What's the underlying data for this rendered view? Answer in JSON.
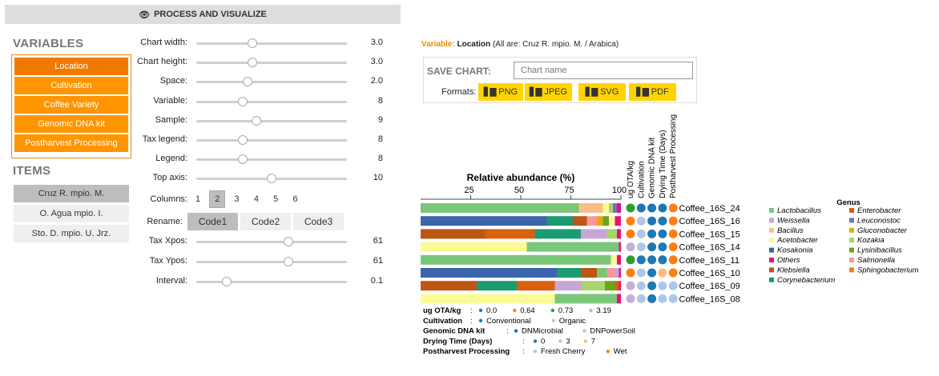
{
  "header": {
    "icon": "eye-icon",
    "title": "PROCESS AND VISUALIZE"
  },
  "variables": {
    "title": "VARIABLES",
    "items": [
      "Location",
      "Cultivation",
      "Coffee Variety",
      "Genomic DNA kit",
      "Postharvest Processing"
    ],
    "active_index": 0
  },
  "items": {
    "title": "ITEMS",
    "list": [
      "Cruz R. mpio. M.",
      "O. Agua mpio. I.",
      "Sto. D. mpio. U. Jrz."
    ],
    "active_index": 0
  },
  "sliders": [
    {
      "label": "Chart width:",
      "value": "3.0",
      "level": 0.37
    },
    {
      "label": "Chart height:",
      "value": "3.0",
      "level": 0.37
    },
    {
      "label": "Space:",
      "value": "2.0",
      "level": 0.34
    },
    {
      "label": "Variable:",
      "value": "8",
      "level": 0.31
    },
    {
      "label": "Sample:",
      "value": "9",
      "level": 0.4
    },
    {
      "label": "Tax legend:",
      "value": "8",
      "level": 0.31
    },
    {
      "label": "Legend:",
      "value": "8",
      "level": 0.31
    },
    {
      "label": "Top axis:",
      "value": "10",
      "level": 0.5
    }
  ],
  "columns": {
    "label": "Columns:",
    "options": [
      "1",
      "2",
      "3",
      "4",
      "5",
      "6"
    ],
    "active_index": 1
  },
  "rename": {
    "label": "Rename:",
    "options": [
      "Code1",
      "Code2",
      "Code3"
    ],
    "active_index": 0
  },
  "sliders2": [
    {
      "label": "Tax Xpos:",
      "value": "61",
      "level": 0.61
    },
    {
      "label": "Tax Ypos:",
      "value": "61",
      "level": 0.61
    },
    {
      "label": "Interval:",
      "value": "0.1",
      "level": 0.2
    }
  ],
  "variable_note": {
    "prefix": "Variable:",
    "name": "Location",
    "rest": "(All are: Cruz R. mpio. M. / Arabica)"
  },
  "save_chart": {
    "title": "SAVE CHART:",
    "placeholder": "Chart name",
    "formats_label": "Formats:",
    "formats": [
      "PNG",
      "JPEG",
      "SVG",
      "PDF"
    ]
  },
  "chart_data": {
    "type": "bar",
    "orientation": "horizontal-stacked",
    "title": "Relative abundance (%)",
    "xlim": [
      0,
      100
    ],
    "ticks": [
      25,
      50,
      75,
      100
    ],
    "samples": [
      "Coffee_16S_24",
      "Coffee_16S_16",
      "Coffee_16S_15",
      "Coffee_16S_14",
      "Coffee_16S_11",
      "Coffee_16S_10",
      "Coffee_16S_09",
      "Coffee_16S_08"
    ],
    "taxa": [
      {
        "name": "Lactobacillus",
        "color": "#7bc77a"
      },
      {
        "name": "Weissella",
        "color": "#c6a6d6"
      },
      {
        "name": "Bacillus",
        "color": "#f7bf86"
      },
      {
        "name": "Acetobacter",
        "color": "#fbfb96"
      },
      {
        "name": "Kosakonia",
        "color": "#3b64ad"
      },
      {
        "name": "Others",
        "color": "#eb0d81"
      },
      {
        "name": "Klebsiella",
        "color": "#bd5613"
      },
      {
        "name": "Corynebacterium",
        "color": "#1b9b72"
      },
      {
        "name": "Enterobacter",
        "color": "#d9600e"
      },
      {
        "name": "Leuconostoc",
        "color": "#7670b3"
      },
      {
        "name": "Gluconobacter",
        "color": "#e7aa05"
      },
      {
        "name": "Kozakia",
        "color": "#a7d46b"
      },
      {
        "name": "Lysinibacillus",
        "color": "#67a71c"
      },
      {
        "name": "Salmonella",
        "color": "#f99797"
      },
      {
        "name": "Sphingobacterium",
        "color": "#f77d09"
      }
    ],
    "stacks": [
      [
        [
          "Lactobacillus",
          79
        ],
        [
          "Bacillus",
          12
        ],
        [
          "Acetobacter",
          3
        ],
        [
          "Kozakia",
          2
        ],
        [
          "Leuconostoc",
          2
        ],
        [
          "Others",
          2
        ]
      ],
      [
        [
          "Kosakonia",
          63
        ],
        [
          "Corynebacterium",
          13
        ],
        [
          "Klebsiella",
          7
        ],
        [
          "Salmonella",
          5
        ],
        [
          "Gluconobacter",
          3
        ],
        [
          "Lysinibacillus",
          3
        ],
        [
          "Acetobacter",
          3
        ],
        [
          "Others",
          3
        ]
      ],
      [
        [
          "Klebsiella",
          32
        ],
        [
          "Enterobacter",
          25
        ],
        [
          "Corynebacterium",
          23
        ],
        [
          "Weissella",
          13
        ],
        [
          "Kozakia",
          5
        ],
        [
          "Others",
          2
        ]
      ],
      [
        [
          "Acetobacter",
          53
        ],
        [
          "Lactobacillus",
          46
        ],
        [
          "Others",
          1
        ]
      ],
      [
        [
          "Lactobacillus",
          95
        ],
        [
          "Acetobacter",
          3
        ],
        [
          "Others",
          2
        ]
      ],
      [
        [
          "Kosakonia",
          68
        ],
        [
          "Corynebacterium",
          12
        ],
        [
          "Klebsiella",
          8
        ],
        [
          "Lactobacillus",
          5
        ],
        [
          "Salmonella",
          4
        ],
        [
          "Weissella",
          2
        ],
        [
          "Others",
          1
        ]
      ],
      [
        [
          "Klebsiella",
          28
        ],
        [
          "Corynebacterium",
          20
        ],
        [
          "Enterobacter",
          19
        ],
        [
          "Weissella",
          13
        ],
        [
          "Kozakia",
          12
        ],
        [
          "Lysinibacillus",
          5
        ],
        [
          "Enterobacter",
          2
        ],
        [
          "Others",
          1
        ]
      ],
      [
        [
          "Acetobacter",
          67
        ],
        [
          "Lactobacillus",
          31
        ],
        [
          "Others",
          2
        ]
      ]
    ],
    "metadata_columns": [
      "ug OTA/kg",
      "Cultivation",
      "Genomic DNA kit",
      "Drying Time (Days)",
      "Postharvest Processing"
    ],
    "metadata_values": [
      [
        "0.73",
        "Conventional",
        "DNMicrobial",
        "0",
        "Wet"
      ],
      [
        "0.64",
        "Organic",
        "DNMicrobial",
        "0",
        "Wet"
      ],
      [
        "0.64",
        "Organic",
        "DNMicrobial",
        "0",
        "Wet"
      ],
      [
        "3.19",
        "Organic",
        "DNMicrobial",
        "0",
        "Wet"
      ],
      [
        "0.73",
        "Conventional",
        "DNMicrobial",
        "0",
        "Wet"
      ],
      [
        "0.64",
        "Organic",
        "DNMicrobial",
        "7",
        "Wet"
      ],
      [
        "3.19",
        "Organic",
        "DNMicrobial",
        "3",
        "Fresh Cherry"
      ],
      [
        "3.19",
        "Organic",
        "DNMicrobial",
        "3",
        "Fresh Cherry"
      ]
    ],
    "metadata_legend": [
      {
        "label": "ug OTA/kg",
        "entries": [
          {
            "name": "0.0",
            "color": "#1f77b4"
          },
          {
            "name": "0.64",
            "color": "#ff7f0e"
          },
          {
            "name": "0.73",
            "color": "#2ca02c"
          },
          {
            "name": "3.19",
            "color": "#c5b0d5"
          }
        ]
      },
      {
        "label": "Cultivation",
        "entries": [
          {
            "name": "Conventional",
            "color": "#1f77b4"
          },
          {
            "name": "Organic",
            "color": "#aec7e8"
          }
        ]
      },
      {
        "label": "Genomic DNA kit",
        "entries": [
          {
            "name": "DNMicrobial",
            "color": "#1f77b4"
          },
          {
            "name": "DNPowerSoil",
            "color": "#aec7e8"
          }
        ]
      },
      {
        "label": "Drying Time (Days)",
        "entries": [
          {
            "name": "0",
            "color": "#1f77b4"
          },
          {
            "name": "3",
            "color": "#aec7e8"
          },
          {
            "name": "7",
            "color": "#ffbb78"
          }
        ]
      },
      {
        "label": "Postharvest Processing",
        "entries": [
          {
            "name": "Fresh Cherry",
            "color": "#aec7e8"
          },
          {
            "name": "Wet",
            "color": "#ff7f0e"
          }
        ]
      }
    ],
    "genus_legend_title": "Genus"
  }
}
